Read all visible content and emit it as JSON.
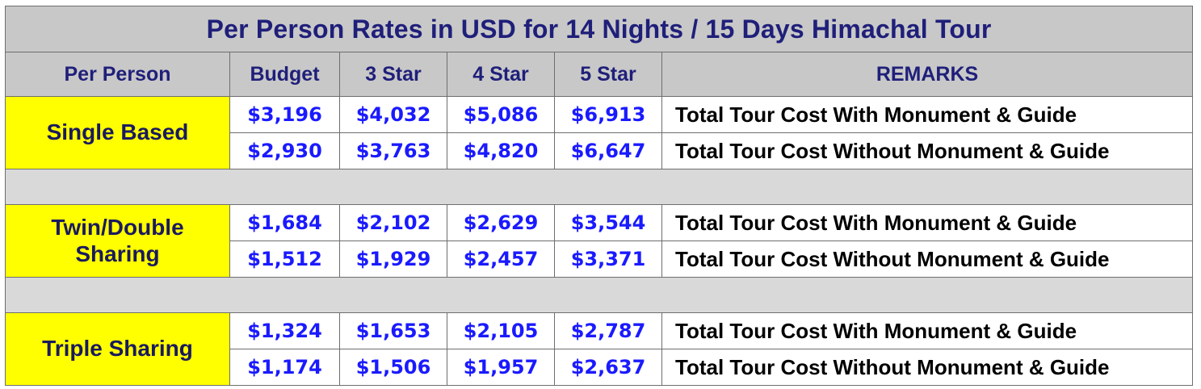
{
  "title": "Per Person Rates in USD for 14 Nights / 15 Days  Himachal Tour",
  "headers": {
    "per_person": "Per Person",
    "budget": "Budget",
    "star3": "3 Star",
    "star4": "4 Star",
    "star5": "5 Star",
    "remarks": "REMARKS"
  },
  "groups": [
    {
      "label_lines": [
        "Single Based"
      ],
      "rows": [
        {
          "budget": "$3,196",
          "star3": "$4,032",
          "star4": "$5,086",
          "star5": "$6,913",
          "remark": "Total Tour Cost With Monument & Guide"
        },
        {
          "budget": "$2,930",
          "star3": "$3,763",
          "star4": "$4,820",
          "star5": "$6,647",
          "remark": "Total Tour Cost Without Monument & Guide"
        }
      ]
    },
    {
      "label_lines": [
        "Twin/Double",
        "Sharing"
      ],
      "rows": [
        {
          "budget": "$1,684",
          "star3": "$2,102",
          "star4": "$2,629",
          "star5": "$3,544",
          "remark": "Total Tour Cost With Monument & Guide"
        },
        {
          "budget": "$1,512",
          "star3": "$1,929",
          "star4": "$2,457",
          "star5": "$3,371",
          "remark": "Total Tour Cost Without Monument & Guide"
        }
      ]
    },
    {
      "label_lines": [
        "Triple Sharing"
      ],
      "rows": [
        {
          "budget": "$1,324",
          "star3": "$1,653",
          "star4": "$2,105",
          "star5": "$2,787",
          "remark": "Total Tour Cost With Monument & Guide"
        },
        {
          "budget": "$1,174",
          "star3": "$1,506",
          "star4": "$1,957",
          "star5": "$2,637",
          "remark": "Total Tour Cost Without Monument & Guide"
        }
      ]
    }
  ],
  "colors": {
    "header_bg": "#c8c8c8",
    "header_text": "#1f1f7a",
    "label_bg": "#ffff00",
    "price_text": "#1a1aff",
    "separator_bg": "#d9d9d9"
  }
}
